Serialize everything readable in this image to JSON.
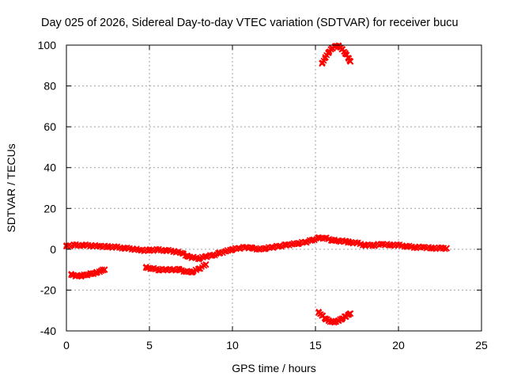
{
  "chart_data": {
    "type": "scatter",
    "title": "Day 025 of 2026, Sidereal Day-to-day VTEC variation (SDTVAR) for receiver bucu",
    "xlabel": "GPS time / hours",
    "ylabel": "SDTVAR / TECUs",
    "xlim": [
      0,
      25
    ],
    "ylim": [
      -40,
      100
    ],
    "x_ticks": [
      0,
      5,
      10,
      15,
      20,
      25
    ],
    "y_ticks": [
      -40,
      -20,
      0,
      20,
      40,
      60,
      80,
      100
    ],
    "x_tick_labels": [
      "0",
      "5",
      "10",
      "15",
      "20",
      "25"
    ],
    "y_tick_labels": [
      "-40",
      "-20",
      "0",
      "20",
      "40",
      "60",
      "80",
      "100"
    ],
    "grid": true,
    "legend": "none",
    "marker_color": "#ff0000",
    "series": [
      {
        "name": "main-track",
        "x": [
          0.0,
          0.5,
          1.0,
          1.5,
          2.0,
          2.5,
          3.0,
          3.5,
          4.0,
          4.5,
          5.0,
          5.5,
          6.0,
          6.5,
          7.0,
          7.3,
          7.6,
          8.0,
          8.4,
          8.8,
          9.2,
          9.6,
          10.0,
          10.4,
          10.8,
          11.2,
          11.6,
          12.0,
          12.4,
          12.8,
          13.2,
          13.6,
          14.0,
          14.4,
          14.8,
          15.2,
          15.6,
          16.0,
          16.4,
          16.8,
          17.0,
          17.5,
          18.0,
          18.5,
          19.0,
          19.5,
          20.0,
          20.5,
          21.0,
          21.5,
          22.0,
          22.5,
          22.9
        ],
        "y": [
          1.5,
          2.0,
          2.0,
          1.8,
          1.5,
          1.2,
          1.0,
          0.6,
          0.2,
          -0.5,
          -0.5,
          -0.3,
          -0.5,
          -1.0,
          -2.0,
          -3.5,
          -4.0,
          -4.5,
          -3.5,
          -3.0,
          -2.0,
          -1.0,
          0.0,
          0.5,
          1.0,
          0.5,
          0.0,
          0.5,
          1.0,
          1.5,
          2.0,
          2.5,
          3.0,
          3.5,
          4.5,
          5.5,
          5.5,
          4.5,
          4.0,
          4.0,
          3.5,
          3.0,
          2.0,
          2.0,
          2.5,
          2.0,
          2.0,
          1.5,
          1.0,
          1.0,
          0.5,
          0.5,
          0.5
        ]
      },
      {
        "name": "lower-left-arc",
        "x": [
          0.3,
          0.6,
          0.9,
          1.2,
          1.5,
          1.8,
          2.1,
          2.3
        ],
        "y": [
          -12.5,
          -13.0,
          -13.0,
          -12.5,
          -12.0,
          -11.5,
          -10.5,
          -10.0
        ]
      },
      {
        "name": "mid-dip",
        "x": [
          4.8,
          5.2,
          5.6,
          6.0,
          6.4,
          6.8,
          7.2,
          7.6,
          8.0,
          8.4
        ],
        "y": [
          -9.0,
          -9.5,
          -10.0,
          -10.0,
          -10.0,
          -10.0,
          -11.0,
          -11.0,
          -9.5,
          -7.5
        ]
      },
      {
        "name": "upper-arc",
        "x": [
          15.4,
          15.6,
          15.8,
          16.0,
          16.2,
          16.4,
          16.6,
          16.8,
          17.0,
          17.1
        ],
        "y": [
          91.0,
          94.0,
          96.5,
          98.5,
          99.5,
          99.5,
          98.0,
          96.0,
          93.5,
          92.0
        ]
      },
      {
        "name": "lower-arc",
        "x": [
          15.2,
          15.4,
          15.6,
          15.8,
          16.0,
          16.2,
          16.4,
          16.6,
          16.8,
          17.0,
          17.1
        ],
        "y": [
          -31.0,
          -32.5,
          -34.0,
          -35.0,
          -35.5,
          -35.5,
          -35.0,
          -34.0,
          -33.0,
          -32.0,
          -31.5
        ]
      }
    ]
  }
}
